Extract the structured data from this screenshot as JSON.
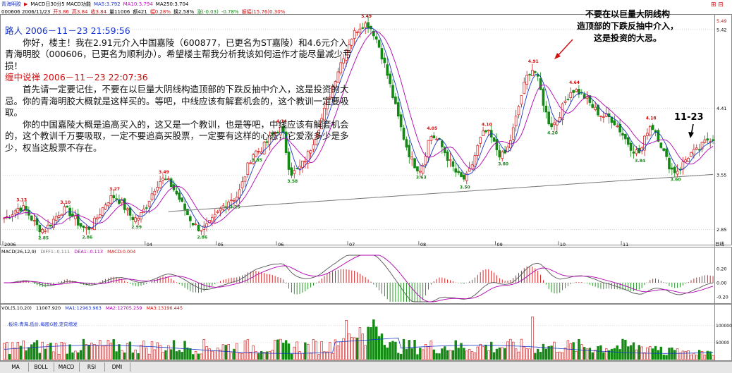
{
  "header": {
    "line1": [
      {
        "text": "青海明胶",
        "color": "#1a35c8"
      },
      {
        "text": "▶",
        "color": "#d01010"
      },
      {
        "text": "MACD日30分5 MACD功能",
        "color": "#000000"
      },
      {
        "text": "MA5:3.792",
        "color": "#1a35c8"
      },
      {
        "text": "MA10:3.794",
        "color": "#d000d0"
      },
      {
        "text": "MA250:3.704",
        "color": "#000000"
      }
    ],
    "line2": [
      {
        "text": "000606 2006/11/23",
        "color": "#000000"
      },
      {
        "text": "开3.86",
        "color": "#d01010"
      },
      {
        "text": "高3.84",
        "color": "#d01010"
      },
      {
        "text": "收3.84",
        "color": "#d01010"
      },
      {
        "text": "量11006",
        "color": "#000000"
      },
      {
        "text": "额421",
        "color": "#000000"
      },
      {
        "text": "幅0.28%",
        "color": "#d01010"
      },
      {
        "text": "换2.58%",
        "color": "#000000"
      },
      {
        "text": "涨(-0.03)",
        "color": "#138a13"
      },
      {
        "text": "-0.78%",
        "color": "#138a13"
      },
      {
        "text": "振幅(15.76)0.30%",
        "color": "#d01010"
      }
    ],
    "icons": "⊞ ⊟"
  },
  "annotation": {
    "q_author": "路人 2006－11－23 21:59:56",
    "q_text": "你好，楼主！我在2.91元介入中国嘉陵（600877，已更名为ST嘉陵）和4.6元介入青海明胶（000606，已更名为顺利办）。希望楼主帮我分析我该如何运作才能尽量减少亏损！",
    "a_author": "缠中说禅 2006－11－23 22:07:36",
    "a_p1": "首先请一定要记住，不要在以巨量大阴线构造顶部的下跌反抽中介入，这是投资的大忌。你的青海明胶大概就是这样买的。等吧，中线应该有解套机会的，这个教训一定要吸取。",
    "a_p2": "你的中国嘉陵大概是追高买入的，这又是一个教训，也是等吧，中线应该有解套机会的，这个教训千万要吸取，一定不要追高买股票，一定要有这样的心态，它爱涨多少是多少，权当这股票不存在。"
  },
  "callout": {
    "line1": "不要在以巨量大阴线构",
    "line2": "造顶部的下跌反抽中介入，",
    "line3": "这是投资的大忌。"
  },
  "mark": "11-23",
  "macd_bar": {
    "label": "MACD(26,12,9)",
    "diff": "DIFF1:-0.111",
    "dea": "DEA1:-0.113",
    "macd": "MACD:0.004"
  },
  "vol_bar": {
    "label": "VOL(5,10,20)",
    "v": "11007.920",
    "ma1": "MA1:12963.963",
    "ma2": "MA2:12705.259",
    "ma3": "MA3:13196.445"
  },
  "sector": "板块:青海,低价,每股G股,定向增发",
  "tabs": [
    "MA",
    "BOLL",
    "MACD",
    "RSI",
    "DMI"
  ],
  "colors": {
    "up": "#d01010",
    "down": "#138a13",
    "ma5": "#1a35c8",
    "ma10": "#b000b0",
    "ma250": "#777777"
  },
  "axis": {
    "price_ticks": [
      "5.42",
      "4.41",
      "3.55",
      "2.85"
    ],
    "top_price": "5.49",
    "macd_ticks": [
      "0.20",
      "0.00",
      "-0.20"
    ],
    "vol_ticks": [
      "100000",
      "50000"
    ],
    "date_labels": [
      "2006",
      "04",
      "05",
      "06",
      "07",
      "08",
      "09",
      "10",
      "11"
    ],
    "unit": "日线"
  },
  "price_labels": [
    "3.13",
    "2.85",
    "3.10",
    "2.86",
    "3.27",
    "2.99",
    "3.49",
    "2.86",
    "3.25",
    "3.85",
    "4.14",
    "3.58",
    "5.49",
    "3.63",
    "4.05",
    "3.50",
    "4.10",
    "3.80",
    "4.91",
    "4.20",
    "4.64",
    "3.84",
    "4.18",
    "3.60"
  ],
  "chart_data": {
    "type": "candlestick",
    "description": "daily candles 2006 (approx)",
    "anchors": [
      {
        "i": 0,
        "v": 3.0
      },
      {
        "i": 6,
        "v": 3.13
      },
      {
        "i": 14,
        "v": 2.85
      },
      {
        "i": 22,
        "v": 3.1
      },
      {
        "i": 30,
        "v": 2.86
      },
      {
        "i": 40,
        "v": 3.27
      },
      {
        "i": 48,
        "v": 2.99
      },
      {
        "i": 58,
        "v": 3.49
      },
      {
        "i": 72,
        "v": 2.86
      },
      {
        "i": 84,
        "v": 3.25
      },
      {
        "i": 92,
        "v": 3.85
      },
      {
        "i": 101,
        "v": 4.14
      },
      {
        "i": 105,
        "v": 3.58
      },
      {
        "i": 132,
        "v": 5.49
      },
      {
        "i": 152,
        "v": 3.63
      },
      {
        "i": 156,
        "v": 4.05
      },
      {
        "i": 168,
        "v": 3.5
      },
      {
        "i": 176,
        "v": 4.1
      },
      {
        "i": 182,
        "v": 3.8
      },
      {
        "i": 193,
        "v": 4.91
      },
      {
        "i": 200,
        "v": 4.2
      },
      {
        "i": 208,
        "v": 4.64
      },
      {
        "i": 220,
        "v": 4.3
      },
      {
        "i": 232,
        "v": 3.84
      },
      {
        "i": 236,
        "v": 4.18
      },
      {
        "i": 245,
        "v": 3.6
      },
      {
        "i": 252,
        "v": 3.84
      },
      {
        "i": 258,
        "v": 4.02
      }
    ],
    "ylim": [
      2.7,
      5.6
    ]
  }
}
